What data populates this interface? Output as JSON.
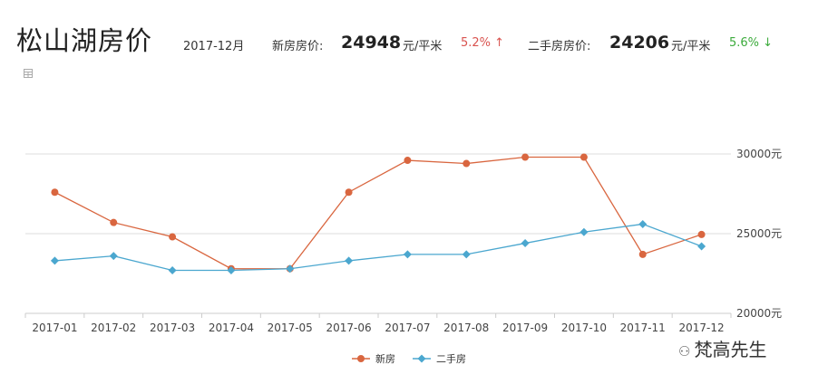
{
  "header": {
    "title": "松山湖房价",
    "period": "2017-12月",
    "new_label": "新房房价:",
    "new_price": "24948",
    "new_unit": "元/平米",
    "new_change": "5.2% ↑",
    "used_label": "二手房房价:",
    "used_price": "24206",
    "used_unit": "元/平米",
    "used_change": "5.6% ↓"
  },
  "watermark": "梵高先生",
  "colors": {
    "new": "#d9663f",
    "used": "#4ba7cf",
    "up": "#d9534f",
    "down": "#3cab3c",
    "grid": "#dddddd"
  },
  "chart_data": {
    "type": "line",
    "categories": [
      "2017-01",
      "2017-02",
      "2017-03",
      "2017-04",
      "2017-05",
      "2017-06",
      "2017-07",
      "2017-08",
      "2017-09",
      "2017-10",
      "2017-11",
      "2017-12"
    ],
    "series": [
      {
        "name": "新房",
        "values": [
          27600,
          25700,
          24800,
          22800,
          22800,
          27600,
          29600,
          29400,
          29800,
          29800,
          23700,
          24948
        ]
      },
      {
        "name": "二手房",
        "values": [
          23300,
          23600,
          22700,
          22700,
          22800,
          23300,
          23700,
          23700,
          24400,
          25100,
          25600,
          24206
        ]
      }
    ],
    "yticks": [
      "20000元",
      "25000元",
      "30000元"
    ],
    "ytick_values": [
      20000,
      25000,
      30000
    ],
    "ylim": [
      20000,
      30000
    ],
    "legend_position": "bottom-center",
    "grid": true
  }
}
